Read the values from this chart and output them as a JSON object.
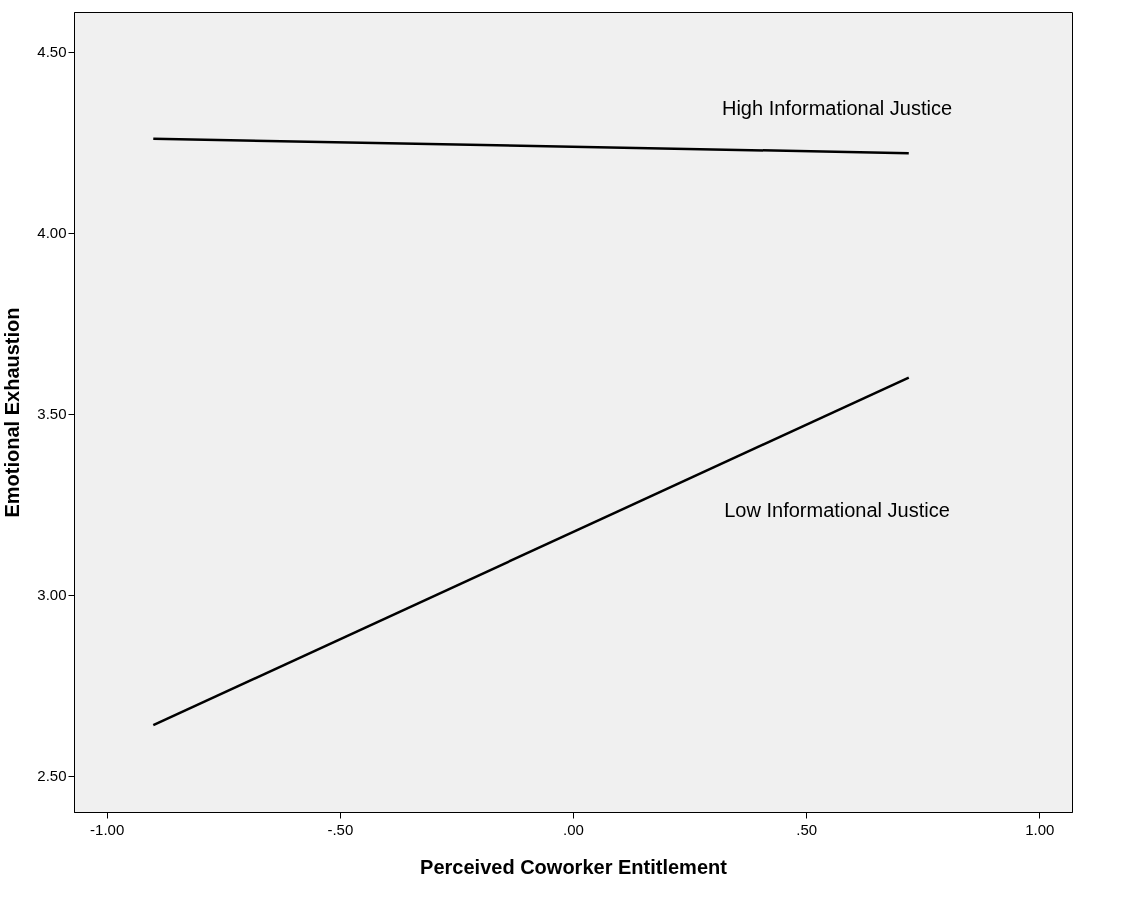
{
  "chart_data": {
    "type": "line",
    "xlabel": "Perceived Coworker Entitlement",
    "ylabel": "Emotional Exhaustion",
    "series": [
      {
        "name": "High Informational Justice",
        "color": "#000000",
        "values": [
          4.26,
          4.22
        ]
      },
      {
        "name": "Low Informational Justice",
        "color": "#000000",
        "values": [
          2.64,
          3.6
        ]
      }
    ],
    "x": [
      -0.9,
      0.72
    ],
    "xlim": [
      -1.07,
      1.07
    ],
    "ylim": [
      2.4,
      4.61
    ],
    "xticks": [
      {
        "value": -1,
        "label": "-1.00"
      },
      {
        "value": -0.5,
        "label": "-.50"
      },
      {
        "value": 0,
        "label": ".00"
      },
      {
        "value": 0.5,
        "label": ".50"
      },
      {
        "value": 1,
        "label": "1.00"
      }
    ],
    "yticks": [
      {
        "value": 2.5,
        "label": "2.50"
      },
      {
        "value": 3,
        "label": "3.00"
      },
      {
        "value": 3.5,
        "label": "3.50"
      },
      {
        "value": 4,
        "label": "4.00"
      },
      {
        "value": 4.5,
        "label": "4.50"
      }
    ],
    "grid": false,
    "legend": false,
    "marker": "none",
    "line_style": "solid"
  }
}
